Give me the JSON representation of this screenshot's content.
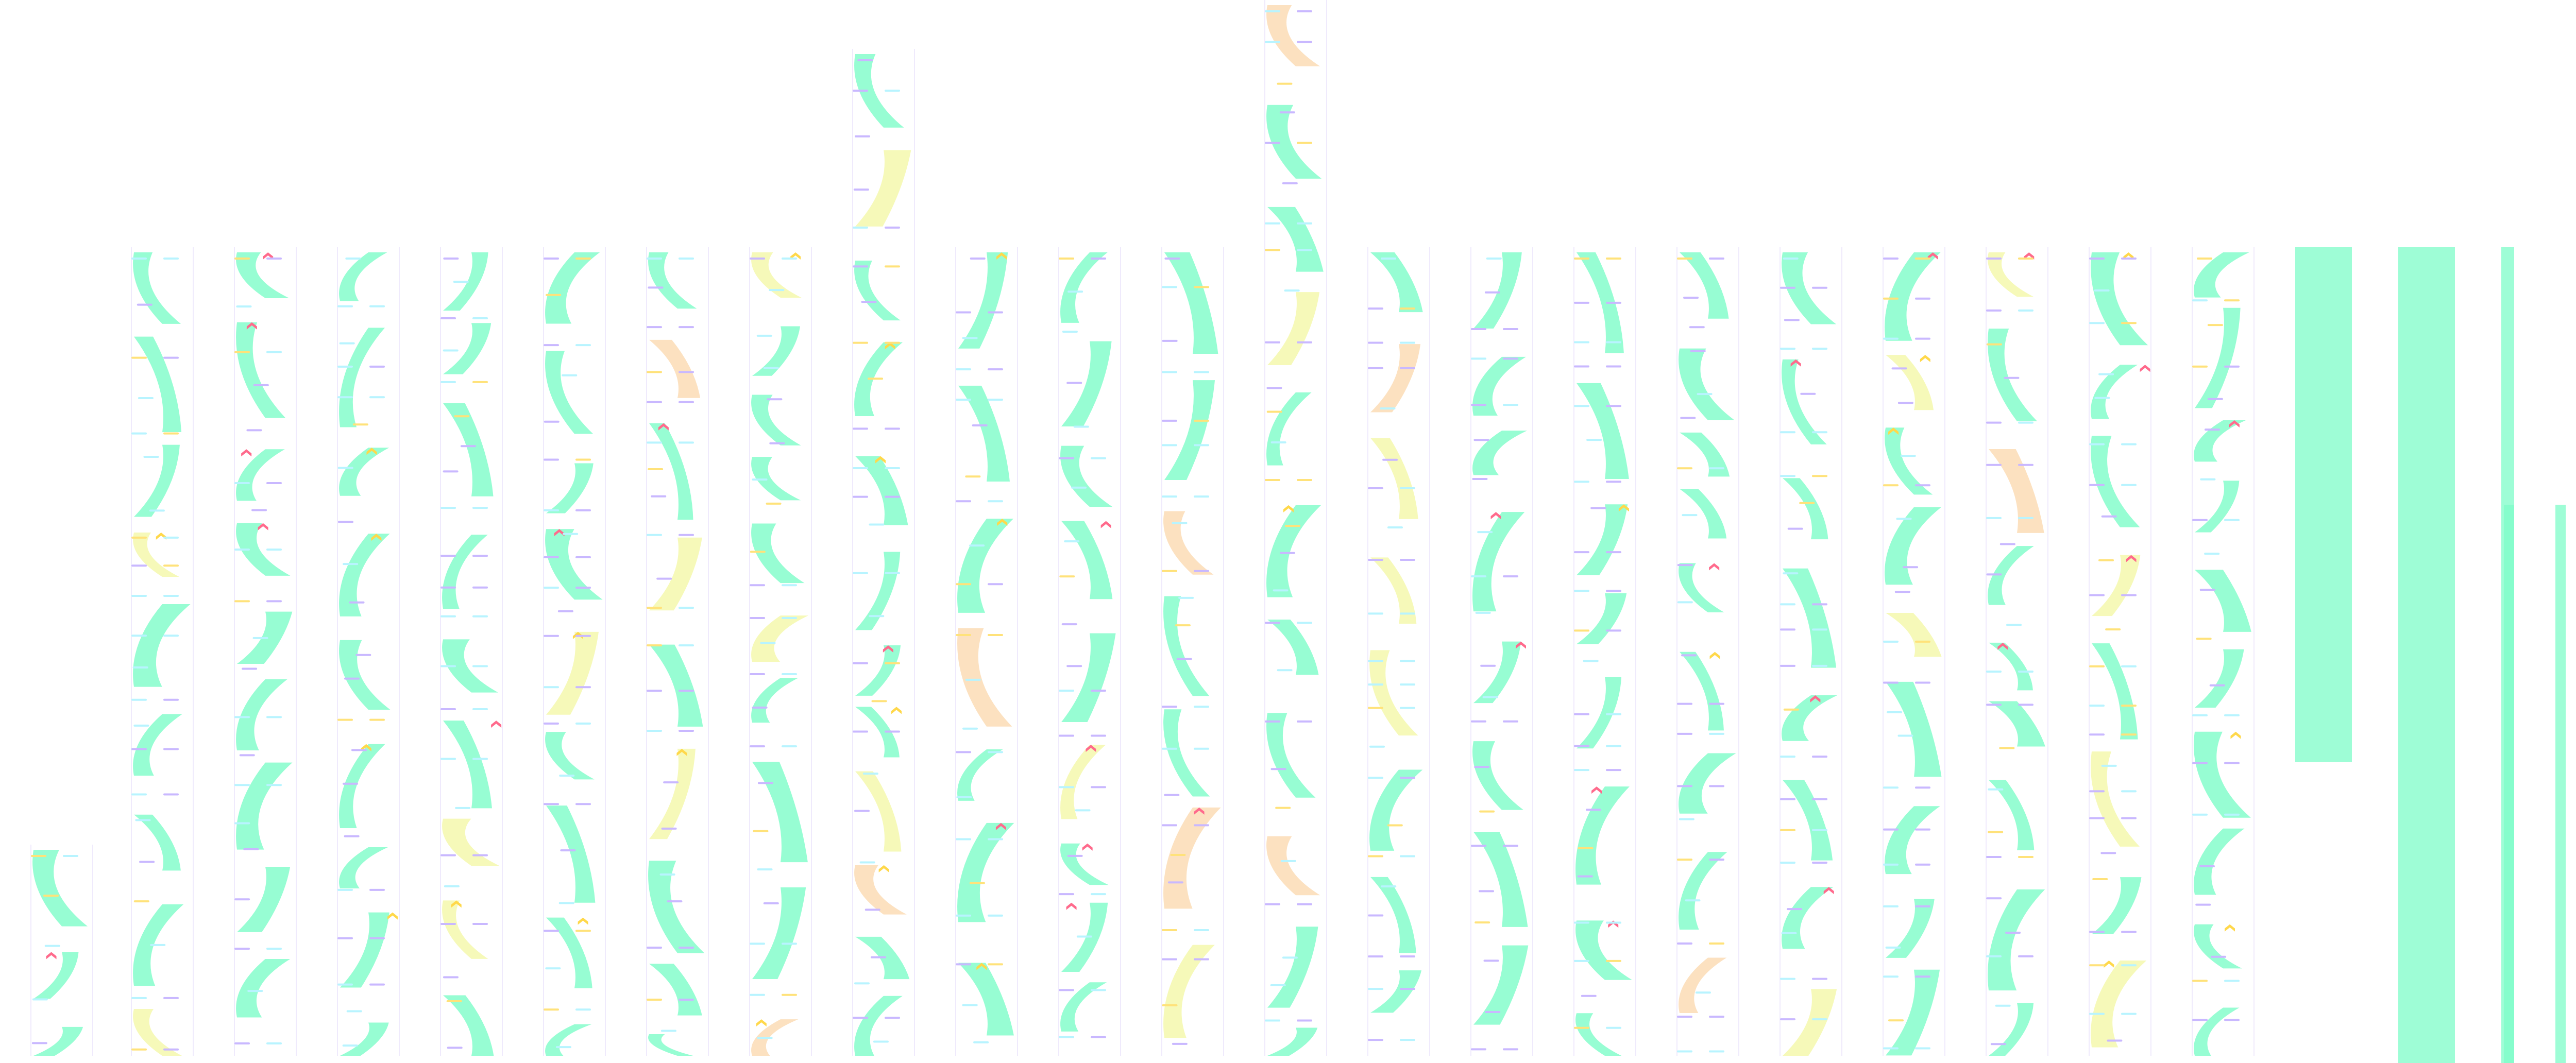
{
  "colors": {
    "background": "#ffffff",
    "ribbon": "#7dfcc8",
    "ribbon_alt": "#f4f7a8",
    "ribbon_warm": "#fbd9b0",
    "bar_purple": "#c9b8ff",
    "bar_cyan": "#b8f4ff",
    "bar_yellow": "#ffe27a",
    "marker_pink": "#ff6a8c",
    "marker_yellow": "#ffd84a",
    "column_line": "#efeafc"
  }
}
